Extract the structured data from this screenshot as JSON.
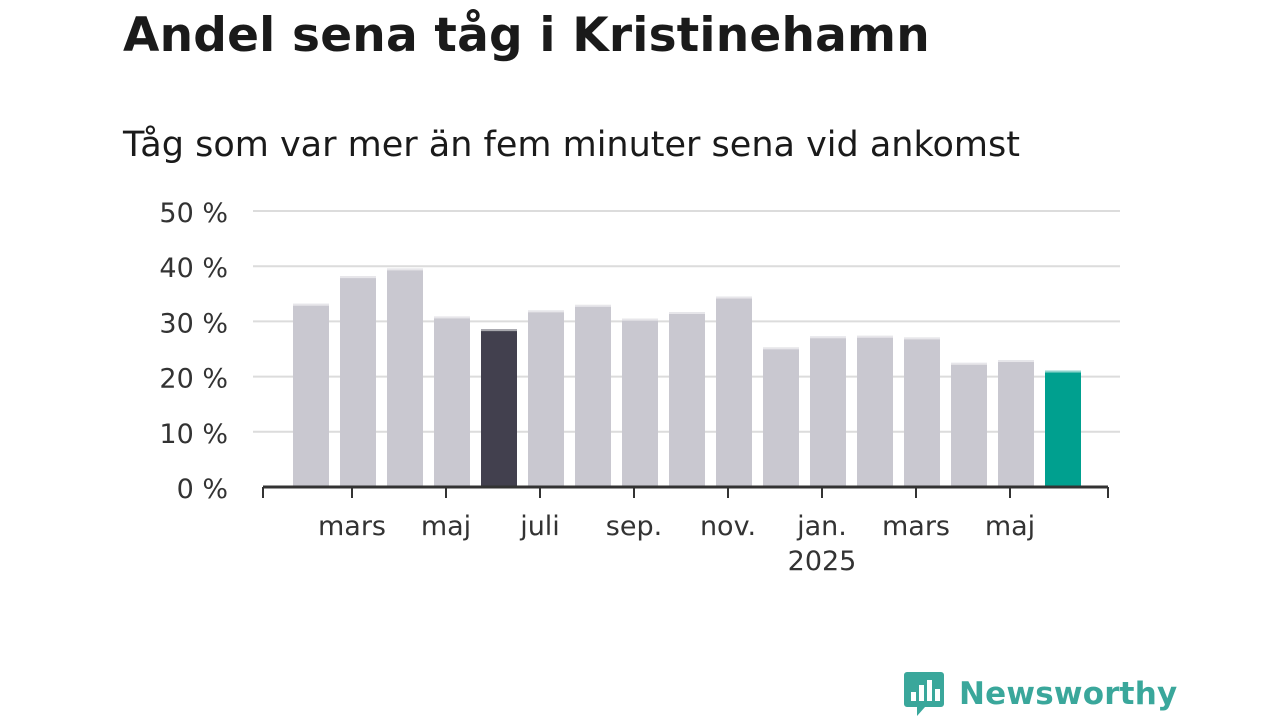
{
  "header": {
    "title": "Andel sena tåg i Kristinehamn",
    "subtitle": "Tåg som var mer än fem minuter sena vid ankomst"
  },
  "brand": {
    "name": "Newsworthy",
    "logo_icon": "bar-chart-speech-bubble-icon",
    "color": "#3aa79b"
  },
  "colors": {
    "bar_default": "#c9c8d0",
    "bar_highlight_dark": "#42404e",
    "bar_highlight_current": "#00a08f",
    "grid": "#dcdcdc",
    "axis": "#333333"
  },
  "chart_data": {
    "type": "bar",
    "title": "Tåg som var mer än fem minuter sena vid ankomst",
    "xlabel": "",
    "ylabel": "",
    "unit": "%",
    "ylim": [
      0,
      50
    ],
    "yticks": [
      0,
      10,
      20,
      30,
      40,
      50
    ],
    "ytick_labels": [
      "0 %",
      "10 %",
      "20 %",
      "30 %",
      "40 %",
      "50 %"
    ],
    "x_tick_labels": [
      {
        "label": "mars",
        "sub": "",
        "month": "2024-03"
      },
      {
        "label": "maj",
        "sub": "",
        "month": "2024-05"
      },
      {
        "label": "juli",
        "sub": "",
        "month": "2024-07"
      },
      {
        "label": "sep.",
        "sub": "",
        "month": "2024-09"
      },
      {
        "label": "nov.",
        "sub": "",
        "month": "2024-11"
      },
      {
        "label": "jan.",
        "sub": "2025",
        "month": "2025-01"
      },
      {
        "label": "mars",
        "sub": "",
        "month": "2025-03"
      },
      {
        "label": "maj",
        "sub": "",
        "month": "2025-05"
      }
    ],
    "grid": true,
    "legend": "none",
    "bars": [
      {
        "month": "2024-02",
        "value": 33.2,
        "highlight": "none"
      },
      {
        "month": "2024-03",
        "value": 38.2,
        "highlight": "none"
      },
      {
        "month": "2024-04",
        "value": 39.6,
        "highlight": "none"
      },
      {
        "month": "2024-05",
        "value": 30.9,
        "highlight": "none"
      },
      {
        "month": "2024-06",
        "value": 28.6,
        "highlight": "dark"
      },
      {
        "month": "2024-07",
        "value": 32.0,
        "highlight": "none"
      },
      {
        "month": "2024-08",
        "value": 33.0,
        "highlight": "none"
      },
      {
        "month": "2024-09",
        "value": 30.5,
        "highlight": "none"
      },
      {
        "month": "2024-10",
        "value": 31.7,
        "highlight": "none"
      },
      {
        "month": "2024-11",
        "value": 34.5,
        "highlight": "none"
      },
      {
        "month": "2024-12",
        "value": 25.3,
        "highlight": "none"
      },
      {
        "month": "2025-01",
        "value": 27.3,
        "highlight": "none"
      },
      {
        "month": "2025-02",
        "value": 27.4,
        "highlight": "none"
      },
      {
        "month": "2025-03",
        "value": 27.1,
        "highlight": "none"
      },
      {
        "month": "2025-04",
        "value": 22.5,
        "highlight": "none"
      },
      {
        "month": "2025-05",
        "value": 23.0,
        "highlight": "none"
      },
      {
        "month": "2025-06",
        "value": 21.1,
        "highlight": "current"
      }
    ]
  }
}
